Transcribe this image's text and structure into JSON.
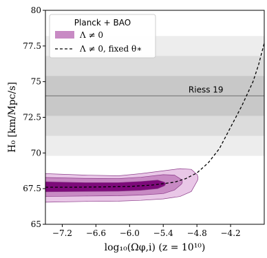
{
  "chart_data": {
    "type": "area",
    "xlabel": "log₁₀(Ωφ,i)  (z = 10¹⁰)",
    "ylabel": "H₀ [km/Mpc/s]",
    "xlim": [
      -7.5,
      -3.6
    ],
    "ylim": [
      65,
      80
    ],
    "x_ticks": [
      -7.2,
      -6.6,
      -6.0,
      -5.4,
      -4.8,
      -4.2
    ],
    "x_tick_labels": [
      "−7.2",
      "−6.6",
      "−6.0",
      "−5.4",
      "−4.8",
      "−4.2"
    ],
    "y_ticks": [
      65,
      67.5,
      70,
      72.5,
      75,
      77.5,
      80
    ],
    "y_tick_labels": [
      "65",
      "67.5",
      "70",
      "72.5",
      "75",
      "77.5",
      "80"
    ],
    "grid": false,
    "legend": {
      "title": "Planck + BAO",
      "placement": "top-left",
      "entries": [
        "Λ ≠ 0",
        "Λ ≠ 0, fixed θ∗"
      ]
    },
    "reference": {
      "label": "Riess 19",
      "value": 74.0,
      "band_1sigma": [
        72.6,
        75.4
      ],
      "band_2sigma": [
        71.2,
        76.8
      ],
      "band_3sigma": [
        69.8,
        78.2
      ],
      "line_color": "#808080",
      "band_colors": [
        "#c8c8c8",
        "#dcdcdc",
        "#ededed"
      ]
    },
    "contours": {
      "colors": [
        "#e9c7e7",
        "#c88ac4",
        "#7d0a7a"
      ],
      "edge_color": "#8a3a88",
      "levels": [
        {
          "name": "outer",
          "upper": [
            [
              -7.5,
              68.55
            ],
            [
              -6.8,
              68.45
            ],
            [
              -6.2,
              68.4
            ],
            [
              -5.8,
              68.55
            ],
            [
              -5.4,
              68.75
            ],
            [
              -5.1,
              68.9
            ],
            [
              -4.9,
              68.85
            ],
            [
              -4.8,
              68.5
            ]
          ],
          "lower": [
            [
              -7.5,
              66.55
            ],
            [
              -6.8,
              66.6
            ],
            [
              -6.2,
              66.62
            ],
            [
              -5.8,
              66.68
            ],
            [
              -5.4,
              66.78
            ],
            [
              -5.1,
              66.95
            ],
            [
              -4.9,
              67.3
            ],
            [
              -4.8,
              68.0
            ]
          ]
        },
        {
          "name": "middle",
          "upper": [
            [
              -7.5,
              68.28
            ],
            [
              -6.8,
              68.22
            ],
            [
              -6.2,
              68.2
            ],
            [
              -5.8,
              68.3
            ],
            [
              -5.4,
              68.48
            ],
            [
              -5.2,
              68.45
            ],
            [
              -5.08,
              68.15
            ]
          ],
          "lower": [
            [
              -7.5,
              66.95
            ],
            [
              -6.8,
              66.98
            ],
            [
              -6.2,
              67.0
            ],
            [
              -5.8,
              67.05
            ],
            [
              -5.4,
              67.15
            ],
            [
              -5.2,
              67.4
            ],
            [
              -5.08,
              67.8
            ]
          ]
        },
        {
          "name": "inner",
          "upper": [
            [
              -7.5,
              67.98
            ],
            [
              -6.8,
              67.92
            ],
            [
              -6.2,
              67.92
            ],
            [
              -5.8,
              68.0
            ],
            [
              -5.5,
              68.1
            ],
            [
              -5.38,
              67.95
            ]
          ],
          "lower": [
            [
              -7.5,
              67.28
            ],
            [
              -6.8,
              67.3
            ],
            [
              -6.2,
              67.32
            ],
            [
              -5.8,
              67.38
            ],
            [
              -5.5,
              67.5
            ],
            [
              -5.38,
              67.7
            ]
          ]
        }
      ]
    },
    "series": [
      {
        "name": "Λ ≠ 0, fixed θ∗",
        "style": "dashed",
        "x": [
          -7.5,
          -7.0,
          -6.5,
          -6.0,
          -5.6,
          -5.2,
          -5.0,
          -4.8,
          -4.6,
          -4.4,
          -4.2,
          -4.0,
          -3.8,
          -3.7,
          -3.6
        ],
        "y": [
          67.6,
          67.6,
          67.62,
          67.65,
          67.75,
          67.95,
          68.2,
          68.6,
          69.3,
          70.3,
          71.8,
          73.3,
          75.0,
          76.2,
          77.7
        ]
      }
    ]
  }
}
